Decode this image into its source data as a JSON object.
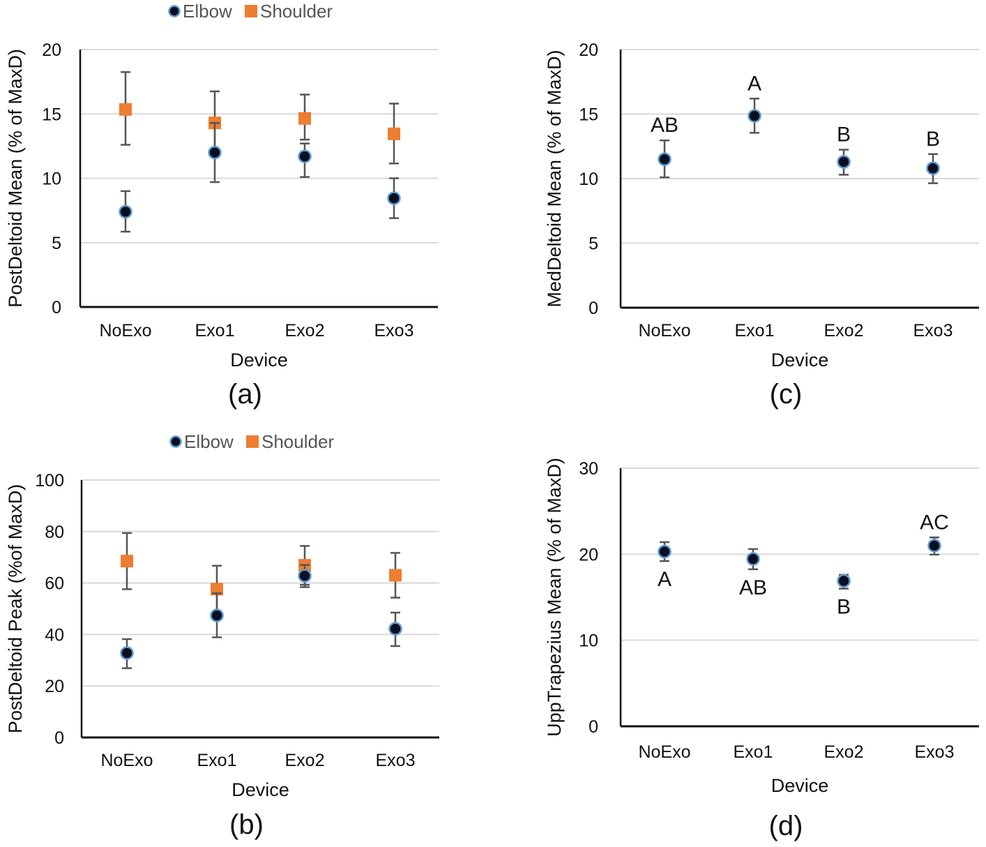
{
  "chart_data": [
    {
      "id": "a",
      "type": "scatter",
      "caption": "(a)",
      "title": "",
      "xlabel": "Device",
      "ylabel": "PostDeltoid Mean (% of MaxD)",
      "categories": [
        "NoExo",
        "Exo1",
        "Exo2",
        "Exo3"
      ],
      "ylim": [
        0,
        20
      ],
      "yticks": [
        0,
        5,
        10,
        15,
        20
      ],
      "grid": true,
      "legend": {
        "position": "top-center",
        "entries": [
          "Elbow",
          "Shoulder"
        ]
      },
      "series": [
        {
          "name": "Elbow",
          "marker": "circle",
          "color": "#0a0f1f",
          "edge_color": "#5b9bd5",
          "values": [
            7.4,
            12.0,
            11.7,
            8.45
          ],
          "err_low": [
            5.85,
            9.7,
            10.1,
            6.9
          ],
          "err_high": [
            9.0,
            14.3,
            12.7,
            10.0
          ]
        },
        {
          "name": "Shoulder",
          "marker": "square",
          "color": "#ed7d31",
          "values": [
            15.35,
            14.3,
            14.65,
            13.45
          ],
          "err_low": [
            12.6,
            11.9,
            13.0,
            11.15
          ],
          "err_high": [
            18.25,
            16.75,
            16.5,
            15.8
          ]
        }
      ],
      "annotations": []
    },
    {
      "id": "b",
      "type": "scatter",
      "caption": "(b)",
      "title": "",
      "xlabel": "Device",
      "ylabel": "PostDeltoid Peak (%of MaxD)",
      "categories": [
        "NoExo",
        "Exo1",
        "Exo2",
        "Exo3"
      ],
      "ylim": [
        0,
        100
      ],
      "yticks": [
        0,
        20,
        40,
        60,
        80,
        100
      ],
      "grid": true,
      "legend": {
        "position": "top-center",
        "entries": [
          "Elbow",
          "Shoulder"
        ]
      },
      "series": [
        {
          "name": "Elbow",
          "marker": "circle",
          "color": "#0a0f1f",
          "edge_color": "#5b9bd5",
          "values": [
            32.8,
            47.4,
            62.8,
            42.2
          ],
          "err_low": [
            26.9,
            38.9,
            58.4,
            35.5
          ],
          "err_high": [
            38.2,
            56.0,
            67.0,
            48.5
          ]
        },
        {
          "name": "Shoulder",
          "marker": "square",
          "color": "#ed7d31",
          "values": [
            68.5,
            57.6,
            66.9,
            63.0
          ],
          "err_low": [
            57.6,
            48.5,
            59.3,
            54.3
          ],
          "err_high": [
            79.4,
            66.7,
            74.4,
            71.7
          ]
        }
      ],
      "annotations": []
    },
    {
      "id": "c",
      "type": "scatter",
      "caption": "(c)",
      "title": "",
      "xlabel": "Device",
      "ylabel": "MedDeltoid Mean (% of MaxD)",
      "categories": [
        "NoExo",
        "Exo1",
        "Exo2",
        "Exo3"
      ],
      "ylim": [
        0,
        20
      ],
      "yticks": [
        0,
        5,
        10,
        15,
        20
      ],
      "grid": true,
      "legend": null,
      "series": [
        {
          "name": "MedDeltoid",
          "marker": "circle",
          "color": "#0a0f1f",
          "edge_color": "#5b9bd5",
          "values": [
            11.5,
            14.86,
            11.3,
            10.8
          ],
          "err_low": [
            10.1,
            13.55,
            10.3,
            9.64
          ],
          "err_high": [
            12.96,
            16.2,
            12.24,
            11.9
          ]
        }
      ],
      "annotations": [
        {
          "category": "NoExo",
          "text": "AB",
          "placement": "above"
        },
        {
          "category": "Exo1",
          "text": "A",
          "placement": "above"
        },
        {
          "category": "Exo2",
          "text": "B",
          "placement": "above"
        },
        {
          "category": "Exo3",
          "text": "B",
          "placement": "above"
        }
      ]
    },
    {
      "id": "d",
      "type": "scatter",
      "caption": "(d)",
      "title": "",
      "xlabel": "Device",
      "ylabel": "UppTrapezius Mean (% of MaxD)",
      "categories": [
        "NoExo",
        "Exo1",
        "Exo2",
        "Exo3"
      ],
      "ylim": [
        0,
        30
      ],
      "yticks": [
        0,
        10,
        20,
        30
      ],
      "grid": true,
      "legend": null,
      "series": [
        {
          "name": "UppTrapezius",
          "marker": "circle",
          "color": "#0a0f1f",
          "edge_color": "#5b9bd5",
          "values": [
            20.3,
            19.45,
            16.9,
            21.0
          ],
          "err_low": [
            19.2,
            18.25,
            16.0,
            19.95
          ],
          "err_high": [
            21.4,
            20.6,
            17.6,
            21.95
          ]
        }
      ],
      "annotations": [
        {
          "category": "NoExo",
          "text": "A",
          "placement": "below"
        },
        {
          "category": "Exo1",
          "text": "AB",
          "placement": "below"
        },
        {
          "category": "Exo2",
          "text": "B",
          "placement": "below"
        },
        {
          "category": "Exo3",
          "text": "AC",
          "placement": "above"
        }
      ]
    }
  ]
}
